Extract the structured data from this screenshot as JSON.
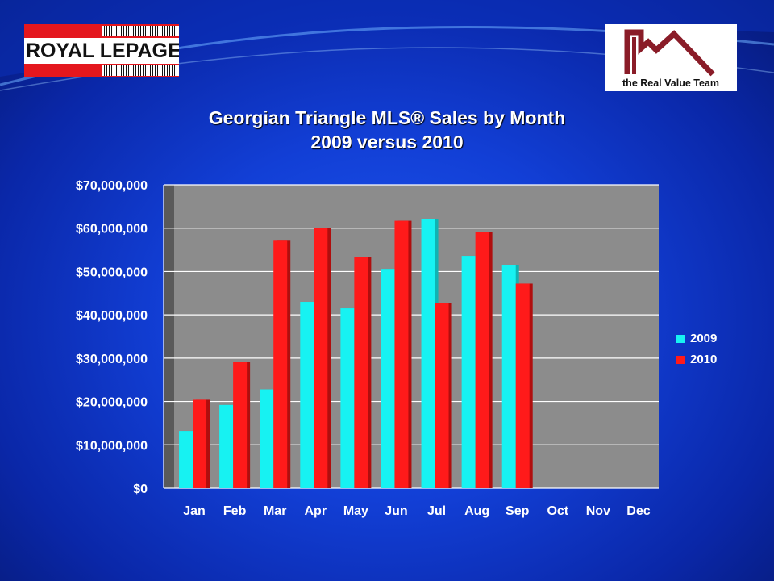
{
  "logos": {
    "left_text": "ROYAL LEPAGE",
    "right_text": "the Real Value Team"
  },
  "title_lines": [
    "Georgian Triangle MLS®  Sales by Month",
    "2009 versus 2010"
  ],
  "colors": {
    "series_2009": "#17f2f2",
    "series_2010": "#ff1a1a",
    "plot_bg": "#8c8c8c",
    "text": "#ffffff"
  },
  "chart_data": {
    "type": "bar",
    "title": "Georgian Triangle MLS®  Sales by Month 2009 versus 2010",
    "categories": [
      "Jan",
      "Feb",
      "Mar",
      "Apr",
      "May",
      "Jun",
      "Jul",
      "Aug",
      "Sep",
      "Oct",
      "Nov",
      "Dec"
    ],
    "series": [
      {
        "name": "2009",
        "values": [
          13200000,
          19200000,
          22800000,
          43000000,
          41500000,
          50600000,
          62000000,
          53600000,
          51500000,
          null,
          null,
          null
        ]
      },
      {
        "name": "2010",
        "values": [
          20400000,
          29100000,
          57100000,
          60000000,
          53300000,
          61700000,
          42700000,
          59100000,
          47200000,
          null,
          null,
          null
        ]
      }
    ],
    "yticks": [
      "$0",
      "$10,000,000",
      "$20,000,000",
      "$30,000,000",
      "$40,000,000",
      "$50,000,000",
      "$60,000,000",
      "$70,000,000"
    ],
    "ylim": [
      0,
      70000000
    ],
    "grid": true,
    "legend_position": "right"
  }
}
